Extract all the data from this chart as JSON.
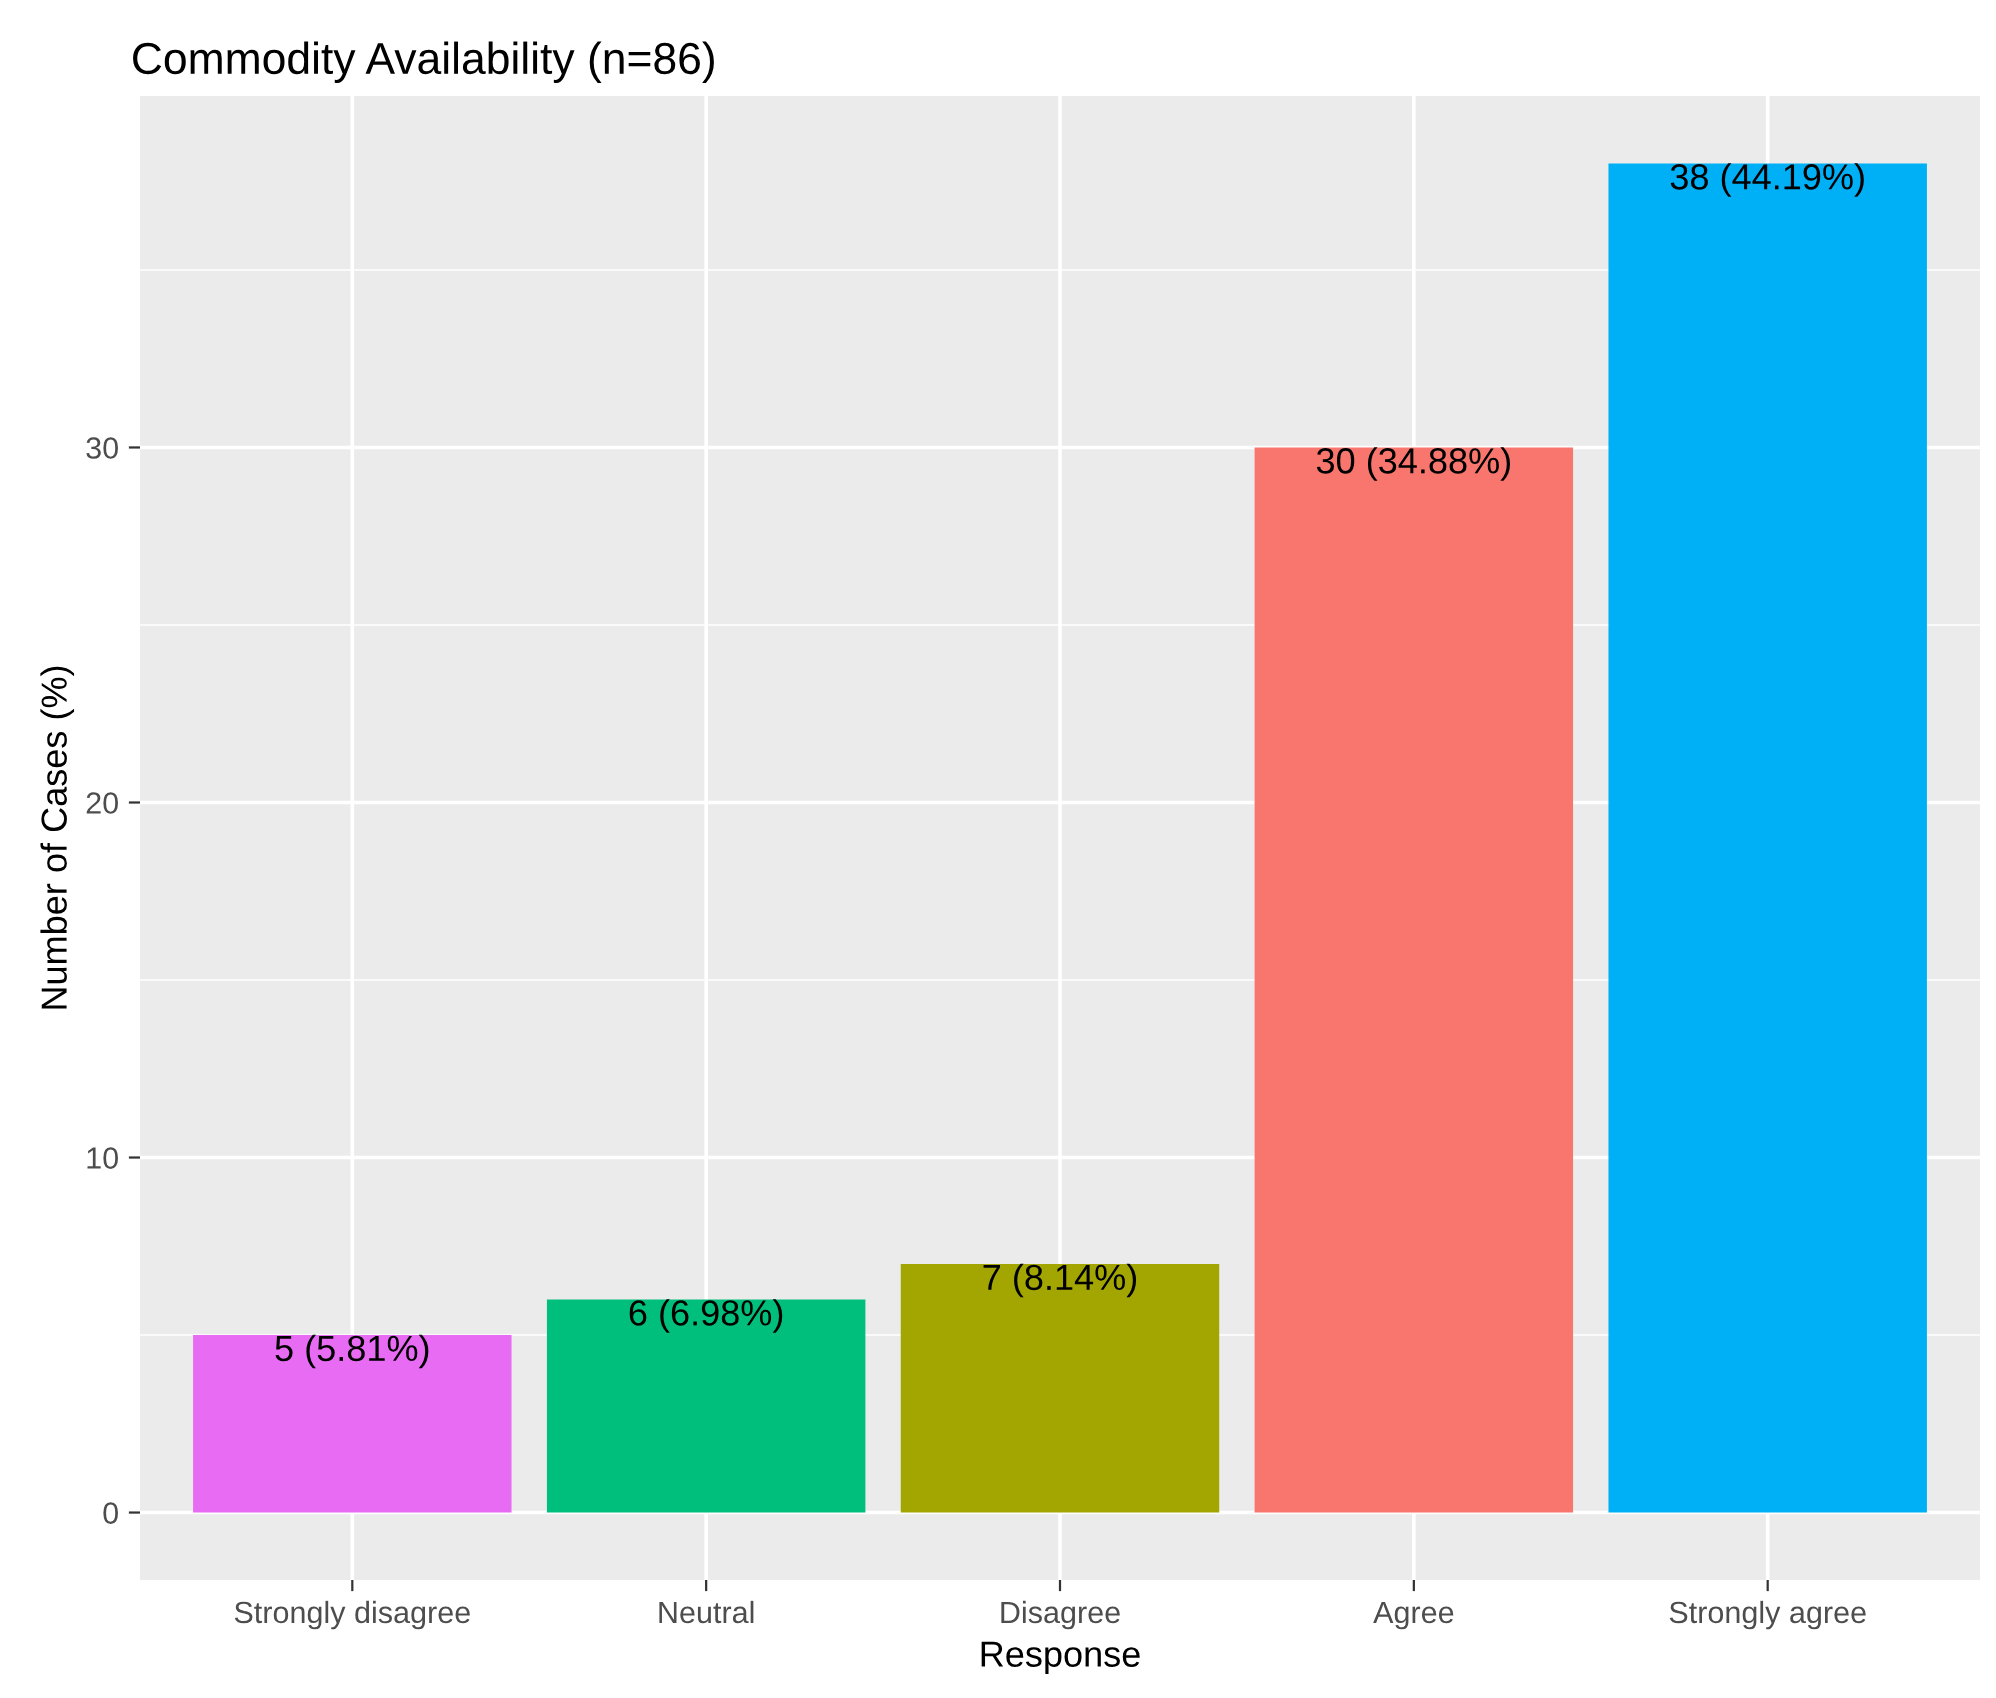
{
  "chart_data": {
    "type": "bar",
    "title": "Commodity Availability (n=86)",
    "xlabel": "Response",
    "ylabel": "Number of Cases (%)",
    "categories": [
      "Strongly disagree",
      "Neutral",
      "Disagree",
      "Agree",
      "Strongly agree"
    ],
    "values": [
      5,
      6,
      7,
      30,
      38
    ],
    "colors": [
      "#e76bf3",
      "#00bf7d",
      "#a3a500",
      "#f8766d",
      "#00b0f6"
    ],
    "value_labels": [
      "5 (5.81%)",
      "6 (6.98%)",
      "7 (8.14%)",
      "30 (34.88%)",
      "38 (44.19%)"
    ],
    "ylim": [
      -1.9,
      39.9
    ],
    "yticks": [
      0,
      10,
      20,
      30
    ],
    "grid": true,
    "legend": false
  }
}
